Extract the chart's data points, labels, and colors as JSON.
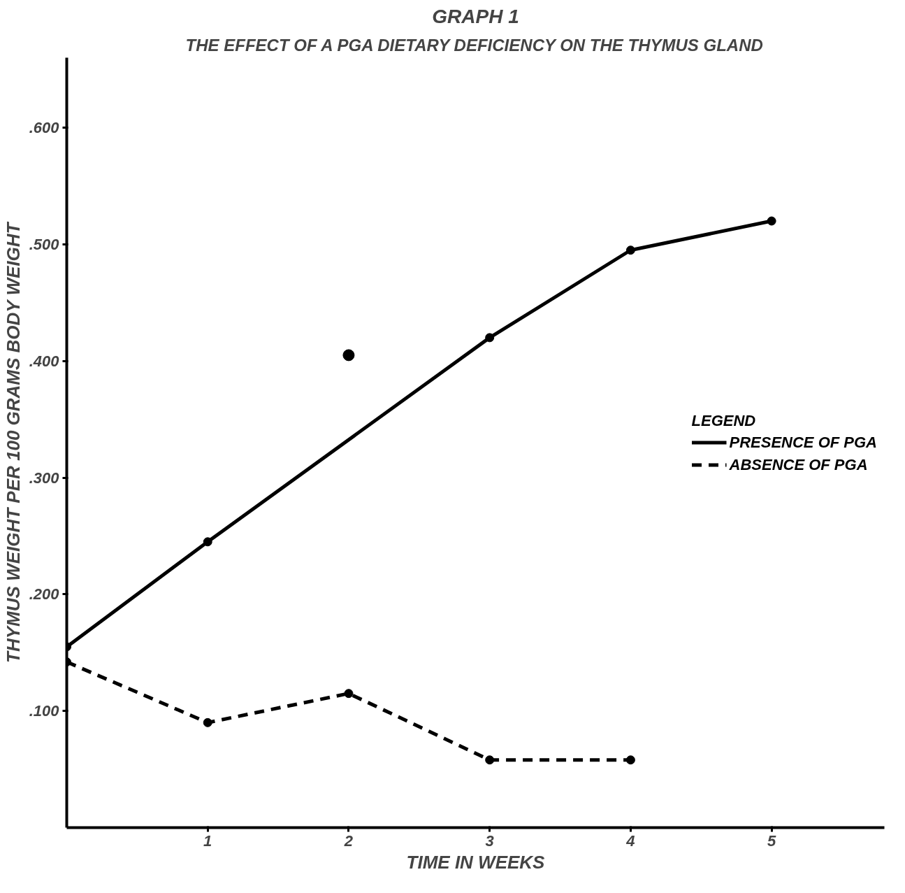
{
  "chart_data": {
    "type": "line",
    "title": "GRAPH 1",
    "subtitle": "THE EFFECT OF A PGA DIETARY DEFICIENCY ON THE THYMUS GLAND",
    "xlabel": "TIME IN WEEKS",
    "ylabel": "THYMUS WEIGHT PER 100 GRAMS BODY WEIGHT",
    "legend_title": "LEGEND",
    "x": [
      0,
      1,
      2,
      3,
      4
    ],
    "series": [
      {
        "name": "PRESENCE OF PGA",
        "color": "#000000",
        "x": [
          0,
          1,
          3,
          4,
          5
        ],
        "values": [
          0.155,
          0.245,
          0.42,
          0.495,
          0.52
        ],
        "line_style": "solid"
      },
      {
        "name": "ABSENCE OF PGA",
        "color": "#000000",
        "values": [
          0.142,
          0.09,
          0.115,
          0.058,
          0.058
        ],
        "line_style": "dashed"
      },
      {
        "type": "scatter",
        "color": "#000000",
        "x": [
          2
        ],
        "values": [
          0.405
        ]
      }
    ],
    "xlim": [
      0,
      5.8
    ],
    "ylim": [
      0,
      0.66
    ],
    "xticks": [
      1,
      2,
      3,
      4,
      5
    ],
    "yticks": [
      {
        "value": 0.1,
        "label": ".100"
      },
      {
        "value": 0.2,
        "label": ".200"
      },
      {
        "value": 0.3,
        "label": ".300"
      },
      {
        "value": 0.4,
        "label": ".400"
      },
      {
        "value": 0.5,
        "label": ".500"
      },
      {
        "value": 0.6,
        "label": ".600"
      }
    ],
    "grid": false,
    "legend": "right",
    "marker": "circle"
  }
}
